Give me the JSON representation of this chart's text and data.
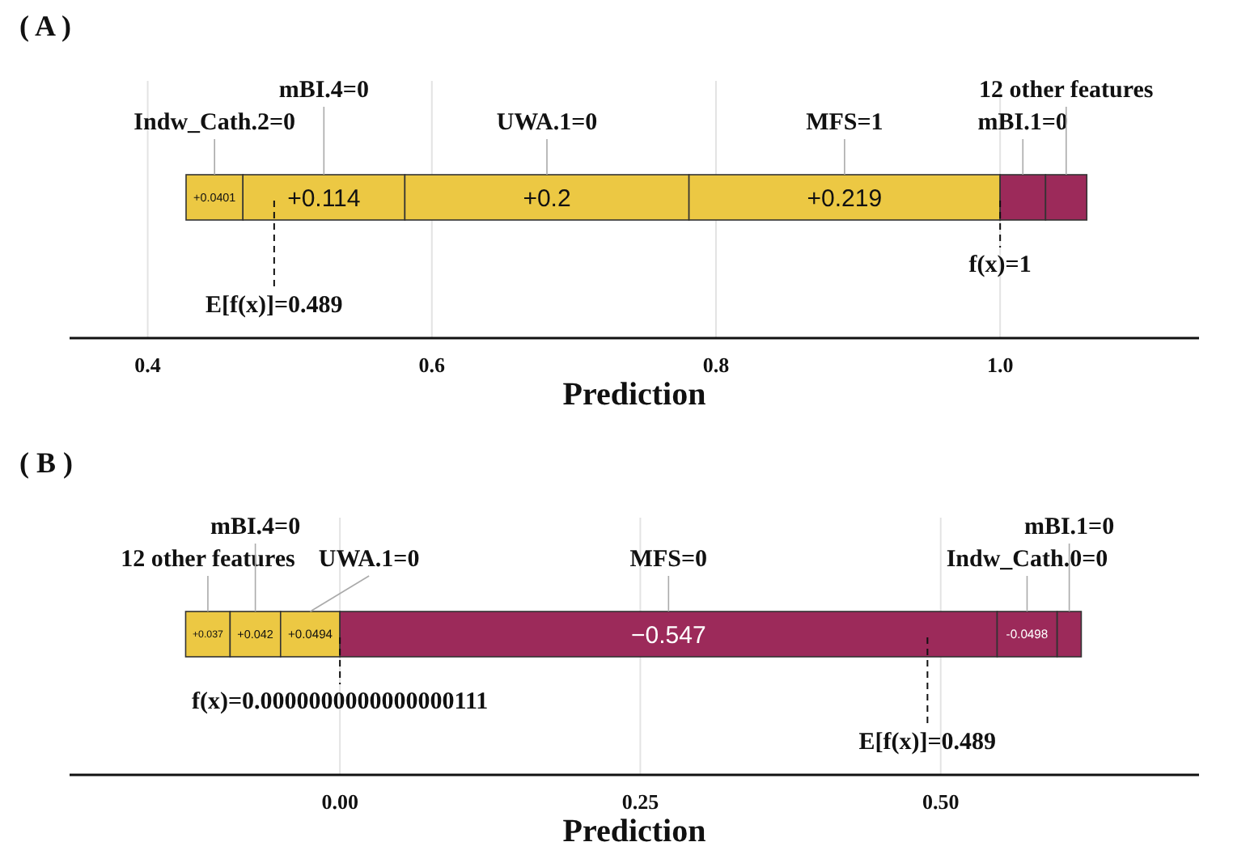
{
  "chart_data": [
    {
      "type": "bar",
      "orientation": "horizontal",
      "title": "( A )",
      "xlabel": "Prediction",
      "grid": "x",
      "legend": false,
      "categories": [
        null
      ],
      "series": [
        {
          "name": "Indw_Cath.2=0",
          "color": "#ecc843",
          "base": [
            0.427
          ],
          "values": [
            0.0401
          ],
          "value_labels": [
            "+0.0401"
          ]
        },
        {
          "name": "mBI.4=0",
          "color": "#ecc843",
          "base": [
            0.467
          ],
          "values": [
            0.114
          ],
          "value_labels": [
            "+0.114"
          ]
        },
        {
          "name": "UWA.1=0",
          "color": "#ecc843",
          "base": [
            0.581
          ],
          "values": [
            0.2
          ],
          "value_labels": [
            "+0.2"
          ]
        },
        {
          "name": "MFS=1",
          "color": "#ecc843",
          "base": [
            0.781
          ],
          "values": [
            0.219
          ],
          "value_labels": [
            "+0.219"
          ]
        },
        {
          "name": "mBI.1=0",
          "color": "#9c2a5a",
          "base": [
            1.032
          ],
          "values": [
            -0.032
          ]
        },
        {
          "name": "12 other features",
          "color": "#9c2a5a",
          "base": [
            1.061
          ],
          "values": [
            -0.029
          ]
        }
      ],
      "xlim": [
        0.345,
        1.14
      ],
      "xticks": [
        0.4,
        0.6,
        0.8,
        {
          "value": 1.0,
          "label": "1.0"
        }
      ],
      "ref_lines": [
        {
          "axis": "x",
          "value": 1.0,
          "label": "f(x)=1",
          "line_style": "dashed",
          "color": "#111111"
        },
        {
          "axis": "x",
          "value": 0.489,
          "label": "E[f(x)]=0.489",
          "line_style": "dashed",
          "color": "#111111"
        }
      ]
    },
    {
      "type": "bar",
      "orientation": "horizontal",
      "title": "( B )",
      "xlabel": "Prediction",
      "grid": "x",
      "legend": false,
      "categories": [
        null
      ],
      "series": [
        {
          "name": "12 other features",
          "color": "#ecc843",
          "base": [
            -0.1284
          ],
          "values": [
            0.037
          ],
          "value_labels": [
            "+0.037"
          ]
        },
        {
          "name": "mBI.4=0",
          "color": "#ecc843",
          "base": [
            -0.0914
          ],
          "values": [
            0.042
          ],
          "value_labels": [
            "+0.042"
          ]
        },
        {
          "name": "UWA.1=0",
          "color": "#ecc843",
          "base": [
            -0.0494
          ],
          "values": [
            0.0494
          ],
          "value_labels": [
            "+0.0494"
          ]
        },
        {
          "name": "MFS=0",
          "color": "#9c2a5a",
          "base": [
            0.547
          ],
          "values": [
            -0.547
          ],
          "value_labels": [
            "−0.547"
          ]
        },
        {
          "name": "Indw_Cath.0=0",
          "color": "#9c2a5a",
          "base": [
            0.5968
          ],
          "values": [
            -0.0498
          ],
          "value_labels": [
            "-0.0498"
          ]
        },
        {
          "name": "mBI.1=0",
          "color": "#9c2a5a",
          "base": [
            0.617
          ],
          "values": [
            -0.02
          ]
        }
      ],
      "xlim": [
        -0.225,
        0.715
      ],
      "xticks": [
        {
          "value": 0,
          "label": "0.00"
        },
        {
          "value": 0.25,
          "label": "0.25"
        },
        {
          "value": 0.5,
          "label": "0.50"
        }
      ],
      "ref_lines": [
        {
          "axis": "x",
          "value": 1.11e-17,
          "label": "f(x)=0.0000000000000000111",
          "line_style": "dashed",
          "color": "#111111"
        },
        {
          "axis": "x",
          "value": 0.489,
          "label": "E[f(x)]=0.489",
          "line_style": "dashed",
          "color": "#111111"
        }
      ]
    }
  ]
}
